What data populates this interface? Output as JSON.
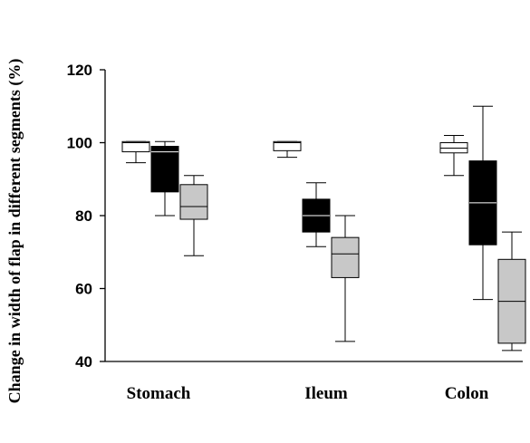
{
  "chart_data": {
    "type": "box",
    "title": "",
    "xlabel": "",
    "ylabel": "Change in width of flap in different segments (%)",
    "ylim": [
      40,
      120
    ],
    "yticks": [
      40,
      60,
      80,
      100,
      120
    ],
    "categories": [
      "Stomach",
      "Ileum",
      "Colon"
    ],
    "grid": false,
    "legend": "none",
    "series": [
      {
        "color": "#ffffff",
        "boxes": [
          {
            "min": 94.5,
            "q1": 97.5,
            "median": 100.0,
            "q3": 100.3,
            "max": 100.3
          },
          {
            "min": 96.0,
            "q1": 97.8,
            "median": 100.0,
            "q3": 100.3,
            "max": 100.3
          },
          {
            "min": 91.0,
            "q1": 97.2,
            "median": 98.5,
            "q3": 100.0,
            "max": 102.0
          }
        ]
      },
      {
        "color": "#000000",
        "boxes": [
          {
            "min": 80.0,
            "q1": 86.5,
            "median": 97.5,
            "q3": 99.0,
            "max": 100.3
          },
          {
            "min": 71.5,
            "q1": 75.5,
            "median": 80.0,
            "q3": 84.5,
            "max": 89.0
          },
          {
            "min": 57.0,
            "q1": 72.0,
            "median": 83.5,
            "q3": 95.0,
            "max": 110.0
          }
        ]
      },
      {
        "color": "#c8c8c8",
        "boxes": [
          {
            "min": 69.0,
            "q1": 79.0,
            "median": 82.5,
            "q3": 88.5,
            "max": 91.0
          },
          {
            "min": 45.5,
            "q1": 63.0,
            "median": 69.5,
            "q3": 74.0,
            "max": 80.0
          },
          {
            "min": 43.0,
            "q1": 45.0,
            "median": 56.5,
            "q3": 68.0,
            "max": 75.5
          }
        ]
      }
    ]
  }
}
